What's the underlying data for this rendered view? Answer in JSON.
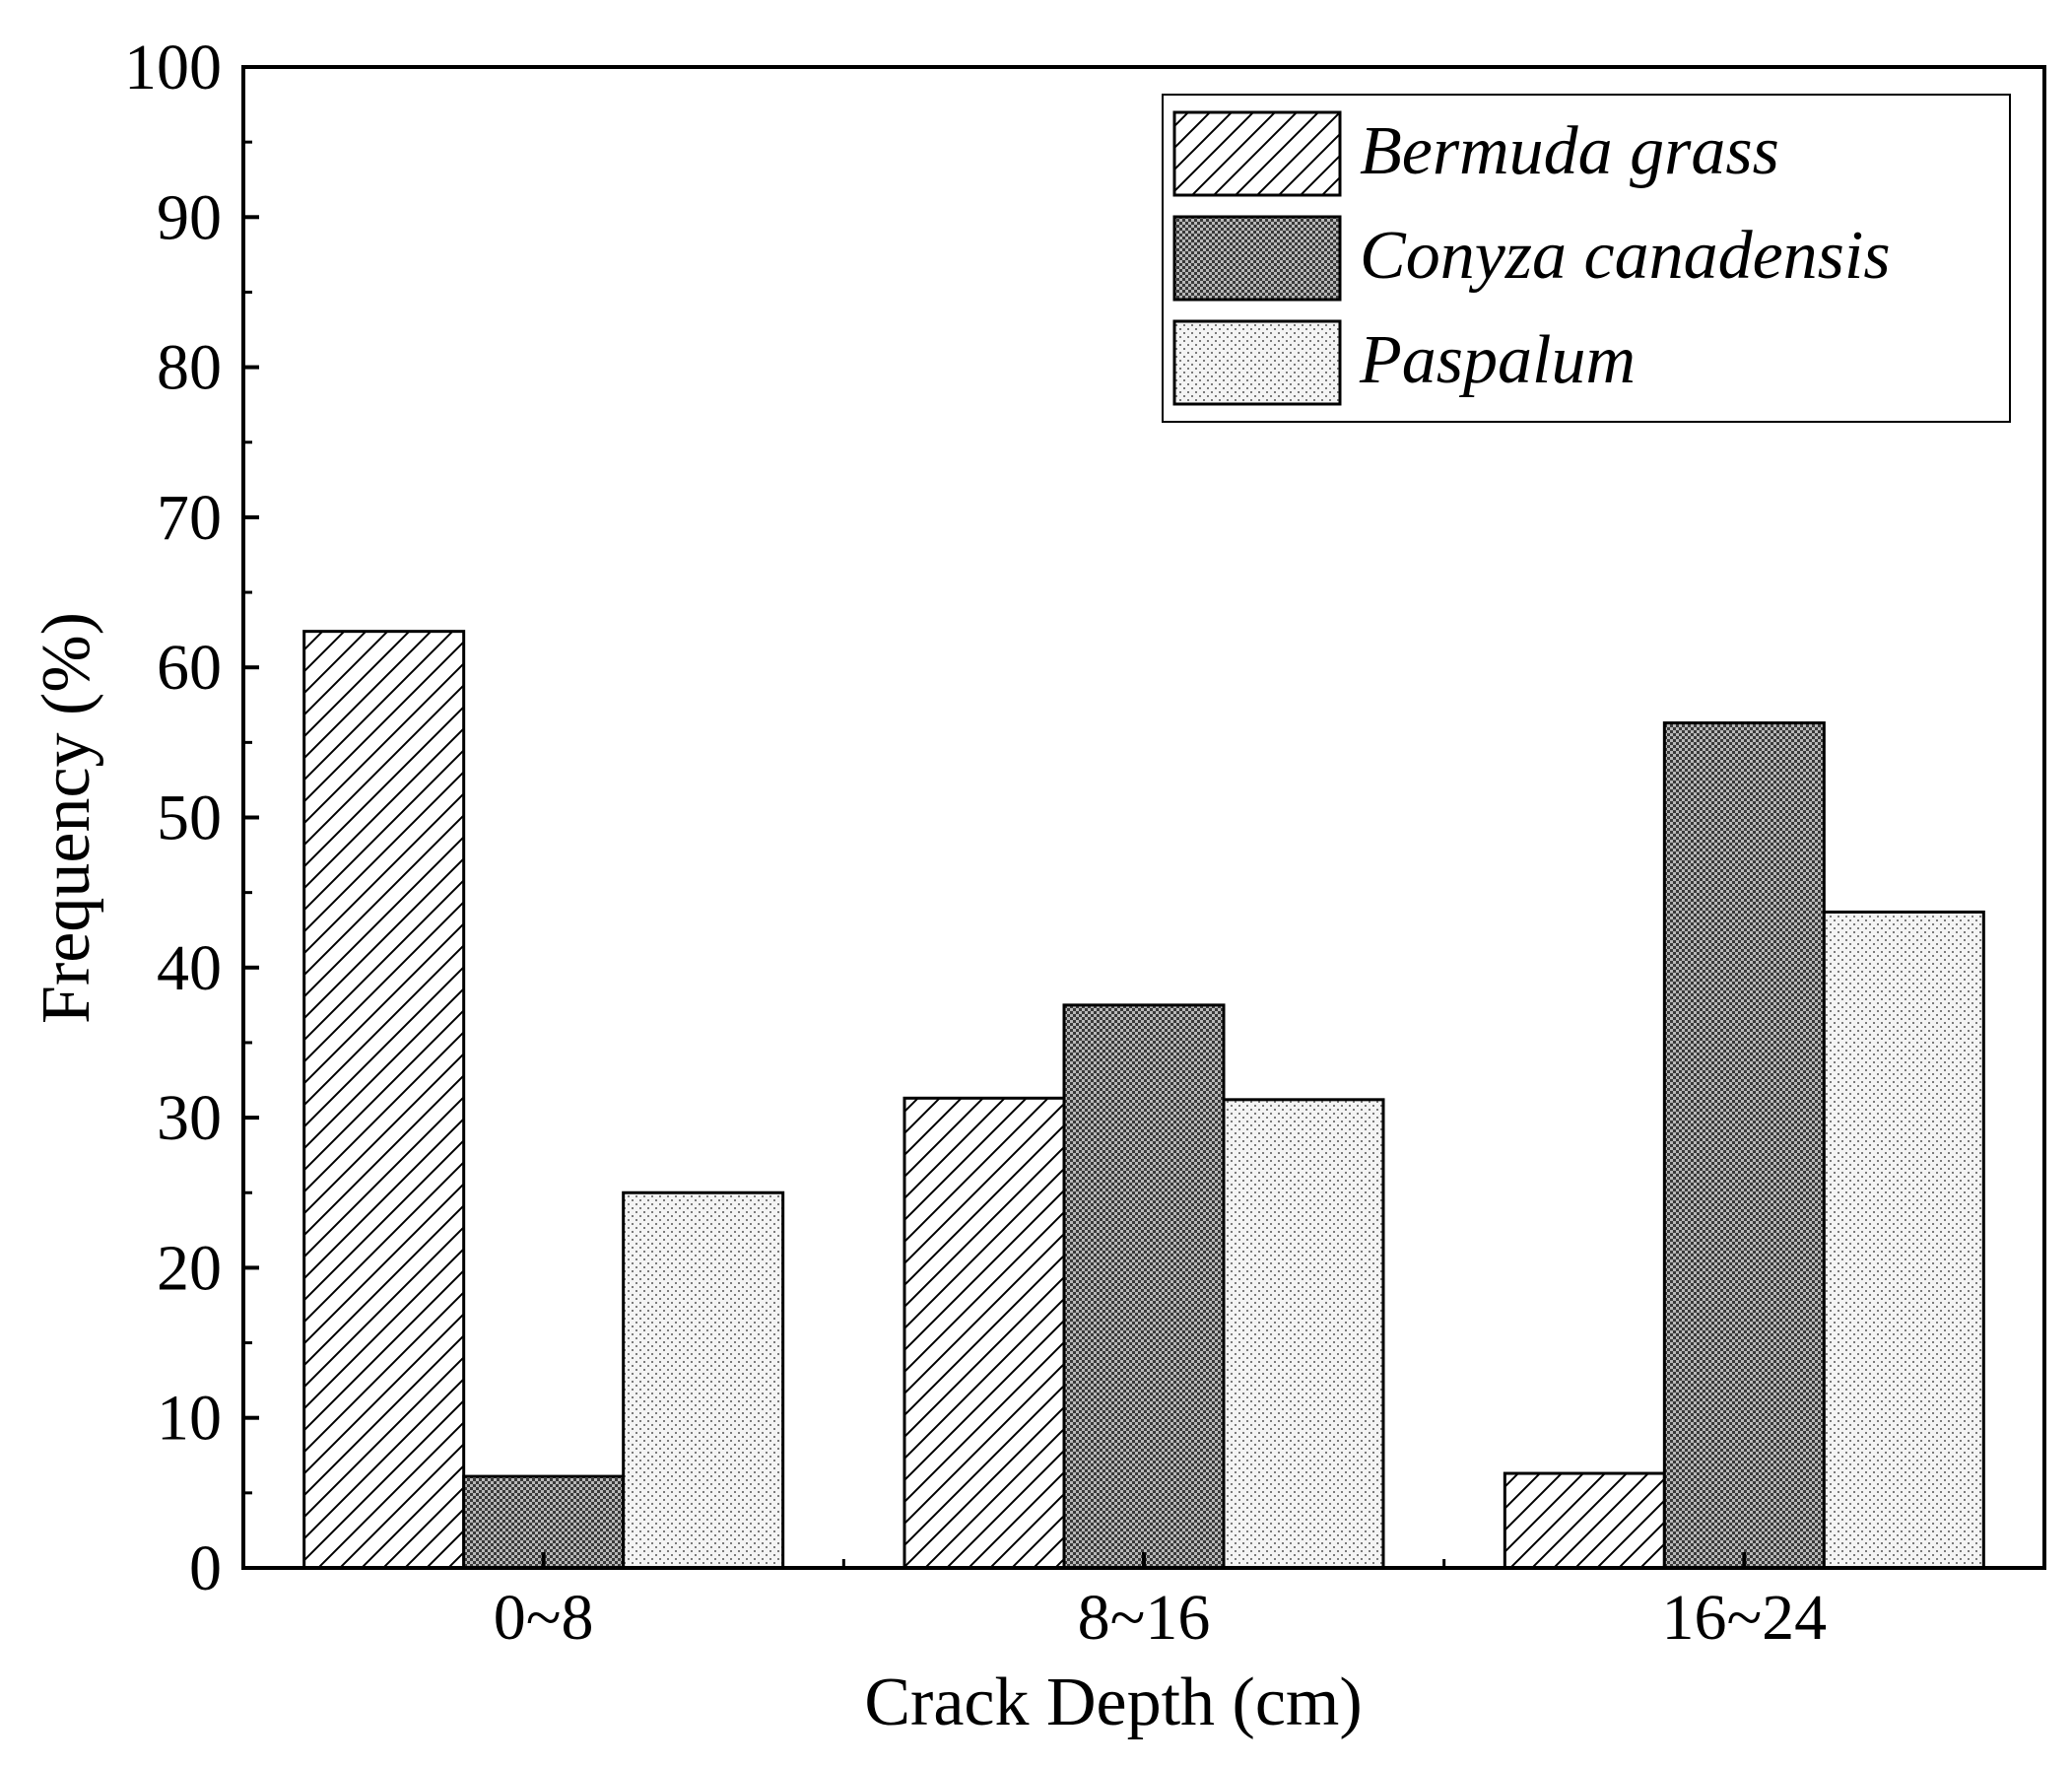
{
  "chart_data": {
    "type": "bar",
    "title": "",
    "xlabel": "Crack Depth (cm)",
    "ylabel": "Frequency (%)",
    "categories": [
      "0~8",
      "8~16",
      "16~24"
    ],
    "ylim": [
      0,
      100
    ],
    "yticks": [
      0,
      10,
      20,
      30,
      40,
      50,
      60,
      70,
      80,
      90,
      100
    ],
    "ytick_labels": [
      "0",
      "10",
      "20",
      "30",
      "40",
      "50",
      "60",
      "70",
      "80",
      "90",
      "100"
    ],
    "grid": false,
    "legend_position": "top-right",
    "series": [
      {
        "name": "Bermuda grass",
        "values": [
          62.4,
          31.3,
          6.3
        ],
        "pattern": "diagonal-hatch"
      },
      {
        "name": "Conyza canadensis",
        "values": [
          6.1,
          37.5,
          56.3
        ],
        "pattern": "dense-crosshatch"
      },
      {
        "name": "Paspalum",
        "values": [
          25.0,
          31.2,
          43.7
        ],
        "pattern": "light-dots"
      }
    ]
  }
}
